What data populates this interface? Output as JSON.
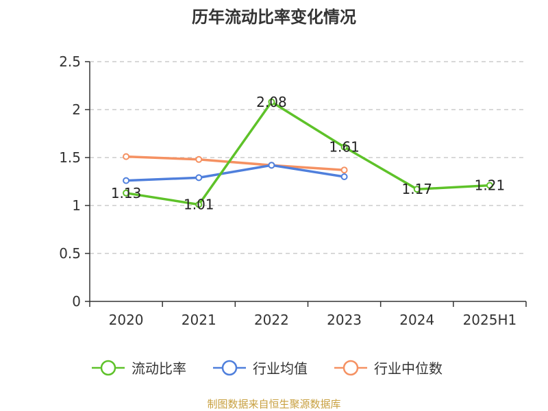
{
  "chart_data": {
    "type": "line",
    "title": "历年流动比率变化情况",
    "categories": [
      "2020",
      "2021",
      "2022",
      "2023",
      "2024",
      "2025H1"
    ],
    "ylim": [
      0,
      2.5
    ],
    "yticks": [
      "0",
      "0.5",
      "1",
      "1.5",
      "2",
      "2.5"
    ],
    "grid": true,
    "legend_position": "bottom",
    "series": [
      {
        "name": "流动比率",
        "color": "#5ec229",
        "values": [
          1.13,
          1.01,
          2.08,
          1.61,
          1.17,
          1.21
        ],
        "labels": [
          "1.13",
          "1.01",
          "2.08",
          "1.61",
          "1.17",
          "1.21"
        ]
      },
      {
        "name": "行业均值",
        "color": "#4f7fdc",
        "values": [
          1.26,
          1.29,
          1.42,
          1.3,
          null,
          null
        ]
      },
      {
        "name": "行业中位数",
        "color": "#f59162",
        "values": [
          1.51,
          1.48,
          1.42,
          1.37,
          null,
          null
        ]
      }
    ]
  },
  "footer": "制图数据来自恒生聚源数据库"
}
